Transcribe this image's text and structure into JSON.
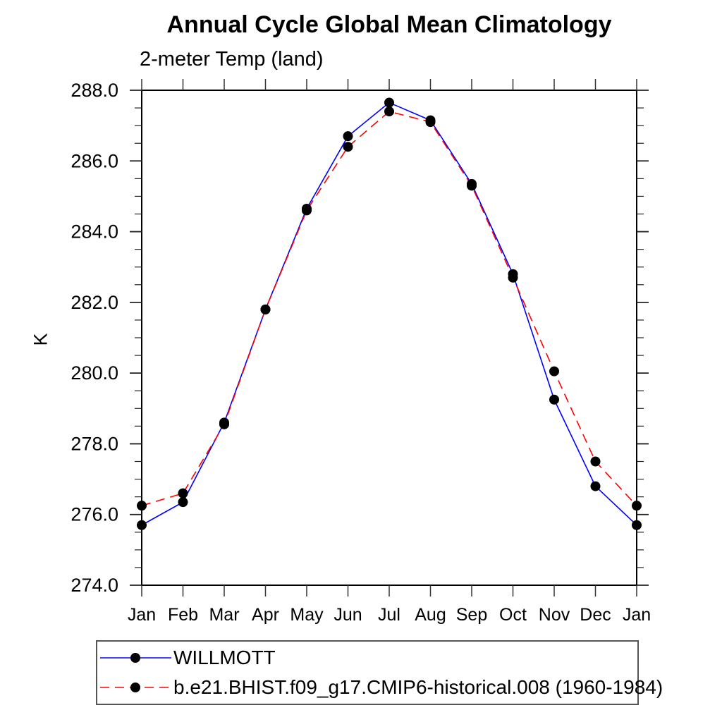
{
  "chart_data": {
    "type": "line",
    "title": "Annual Cycle Global Mean Climatology",
    "subtitle": "2-meter Temp (land)",
    "xlabel": "",
    "ylabel": "K",
    "x_categories": [
      "Jan",
      "Feb",
      "Mar",
      "Apr",
      "May",
      "Jun",
      "Jul",
      "Aug",
      "Sep",
      "Oct",
      "Nov",
      "Dec",
      "Jan"
    ],
    "ylim": [
      274.0,
      288.0
    ],
    "y_major_ticks": [
      274.0,
      276.0,
      278.0,
      280.0,
      282.0,
      284.0,
      286.0,
      288.0
    ],
    "y_major_tick_labels": [
      "274.0",
      "276.0",
      "278.0",
      "280.0",
      "282.0",
      "284.0",
      "286.0",
      "288.0"
    ],
    "y_minor_step": 0.5,
    "grid": false,
    "legend_position": "bottom-left",
    "marker": "filled-circle",
    "marker_color": "#000000",
    "series": [
      {
        "name": "WILLMOTT",
        "color": "#0000ff",
        "line_style": "solid",
        "values": [
          275.7,
          276.35,
          278.6,
          281.8,
          284.65,
          286.7,
          287.65,
          287.15,
          285.35,
          282.8,
          279.25,
          276.8,
          275.7
        ]
      },
      {
        "name": "b.e21.BHIST.f09_g17.CMIP6-historical.008 (1960-1984)",
        "color": "#ff0000",
        "line_style": "dashed",
        "values": [
          276.25,
          276.6,
          278.55,
          281.8,
          284.6,
          286.4,
          287.4,
          287.1,
          285.3,
          282.7,
          280.05,
          277.5,
          276.25
        ]
      }
    ],
    "frame_color": "#000000",
    "tick_color": "#333333"
  }
}
